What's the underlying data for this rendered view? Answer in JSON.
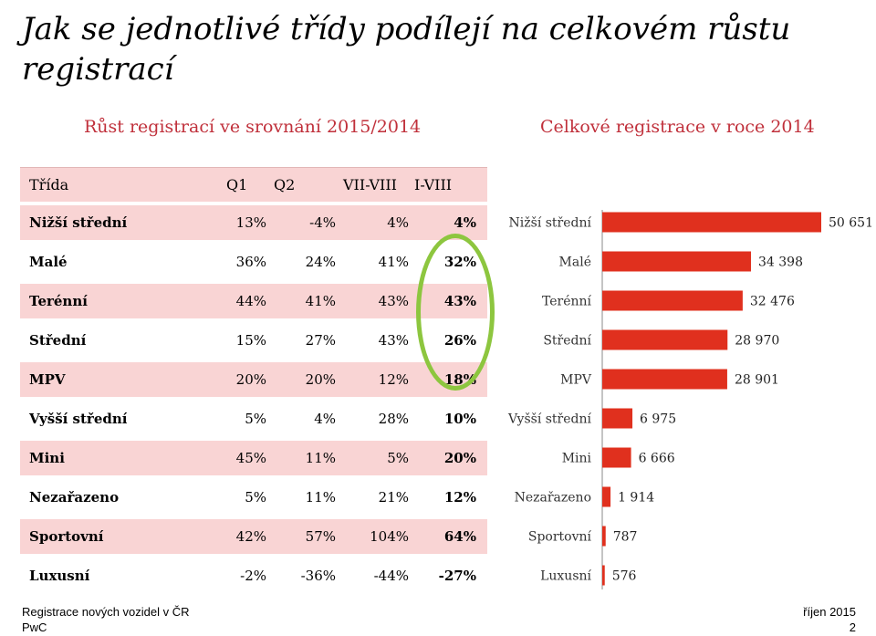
{
  "title": "Jak se jednotlivé třídy podílejí na celkovém růstu registrací",
  "subtitles": {
    "left": "Růst registrací ve srovnání 2015/2014",
    "right": "Celkové registrace v roce 2014"
  },
  "table": {
    "headers": [
      "Třída",
      "Q1",
      "Q2",
      "VII-VIII",
      "I-VIII"
    ],
    "rows": [
      {
        "name": "Nižší střední",
        "q1": "13%",
        "q2": "-4%",
        "vii_viii": "4%",
        "i_viii": "4%"
      },
      {
        "name": "Malé",
        "q1": "36%",
        "q2": "24%",
        "vii_viii": "41%",
        "i_viii": "32%"
      },
      {
        "name": "Terénní",
        "q1": "44%",
        "q2": "41%",
        "vii_viii": "43%",
        "i_viii": "43%"
      },
      {
        "name": "Střední",
        "q1": "15%",
        "q2": "27%",
        "vii_viii": "43%",
        "i_viii": "26%"
      },
      {
        "name": "MPV",
        "q1": "20%",
        "q2": "20%",
        "vii_viii": "12%",
        "i_viii": "18%"
      },
      {
        "name": "Vyšší střední",
        "q1": "5%",
        "q2": "4%",
        "vii_viii": "28%",
        "i_viii": "10%"
      },
      {
        "name": "Mini",
        "q1": "45%",
        "q2": "11%",
        "vii_viii": "5%",
        "i_viii": "20%"
      },
      {
        "name": "Nezařazeno",
        "q1": "5%",
        "q2": "11%",
        "vii_viii": "21%",
        "i_viii": "12%"
      },
      {
        "name": "Sportovní",
        "q1": "42%",
        "q2": "57%",
        "vii_viii": "104%",
        "i_viii": "64%"
      },
      {
        "name": "Luxusní",
        "q1": "-2%",
        "q2": "-36%",
        "vii_viii": "-44%",
        "i_viii": "-27%"
      }
    ]
  },
  "chart_data": {
    "type": "bar",
    "orientation": "horizontal",
    "title": "Celkové registrace v roce 2014",
    "categories": [
      "Nižší střední",
      "Malé",
      "Terénní",
      "Střední",
      "MPV",
      "Vyšší střední",
      "Mini",
      "Nezařazeno",
      "Sportovní",
      "Luxusní"
    ],
    "values": [
      50651,
      34398,
      32476,
      28970,
      28901,
      6975,
      6666,
      1914,
      787,
      576
    ],
    "value_labels": [
      "50 651",
      "34 398",
      "32 476",
      "28 970",
      "28 901",
      "6 975",
      "6 666",
      "1 914",
      "787",
      "576"
    ],
    "xlim": [
      0,
      50651
    ],
    "grid": false,
    "bar_color": "#e0301e"
  },
  "colors": {
    "accent": "#c0303b",
    "row_shade": "#f9d4d4",
    "highlight": "#8dc63f"
  },
  "footer": {
    "left_line1": "Registrace nových vozidel v ČR",
    "left_line2": "PwC",
    "right_line1": "říjen 2015",
    "right_line2": "2"
  }
}
